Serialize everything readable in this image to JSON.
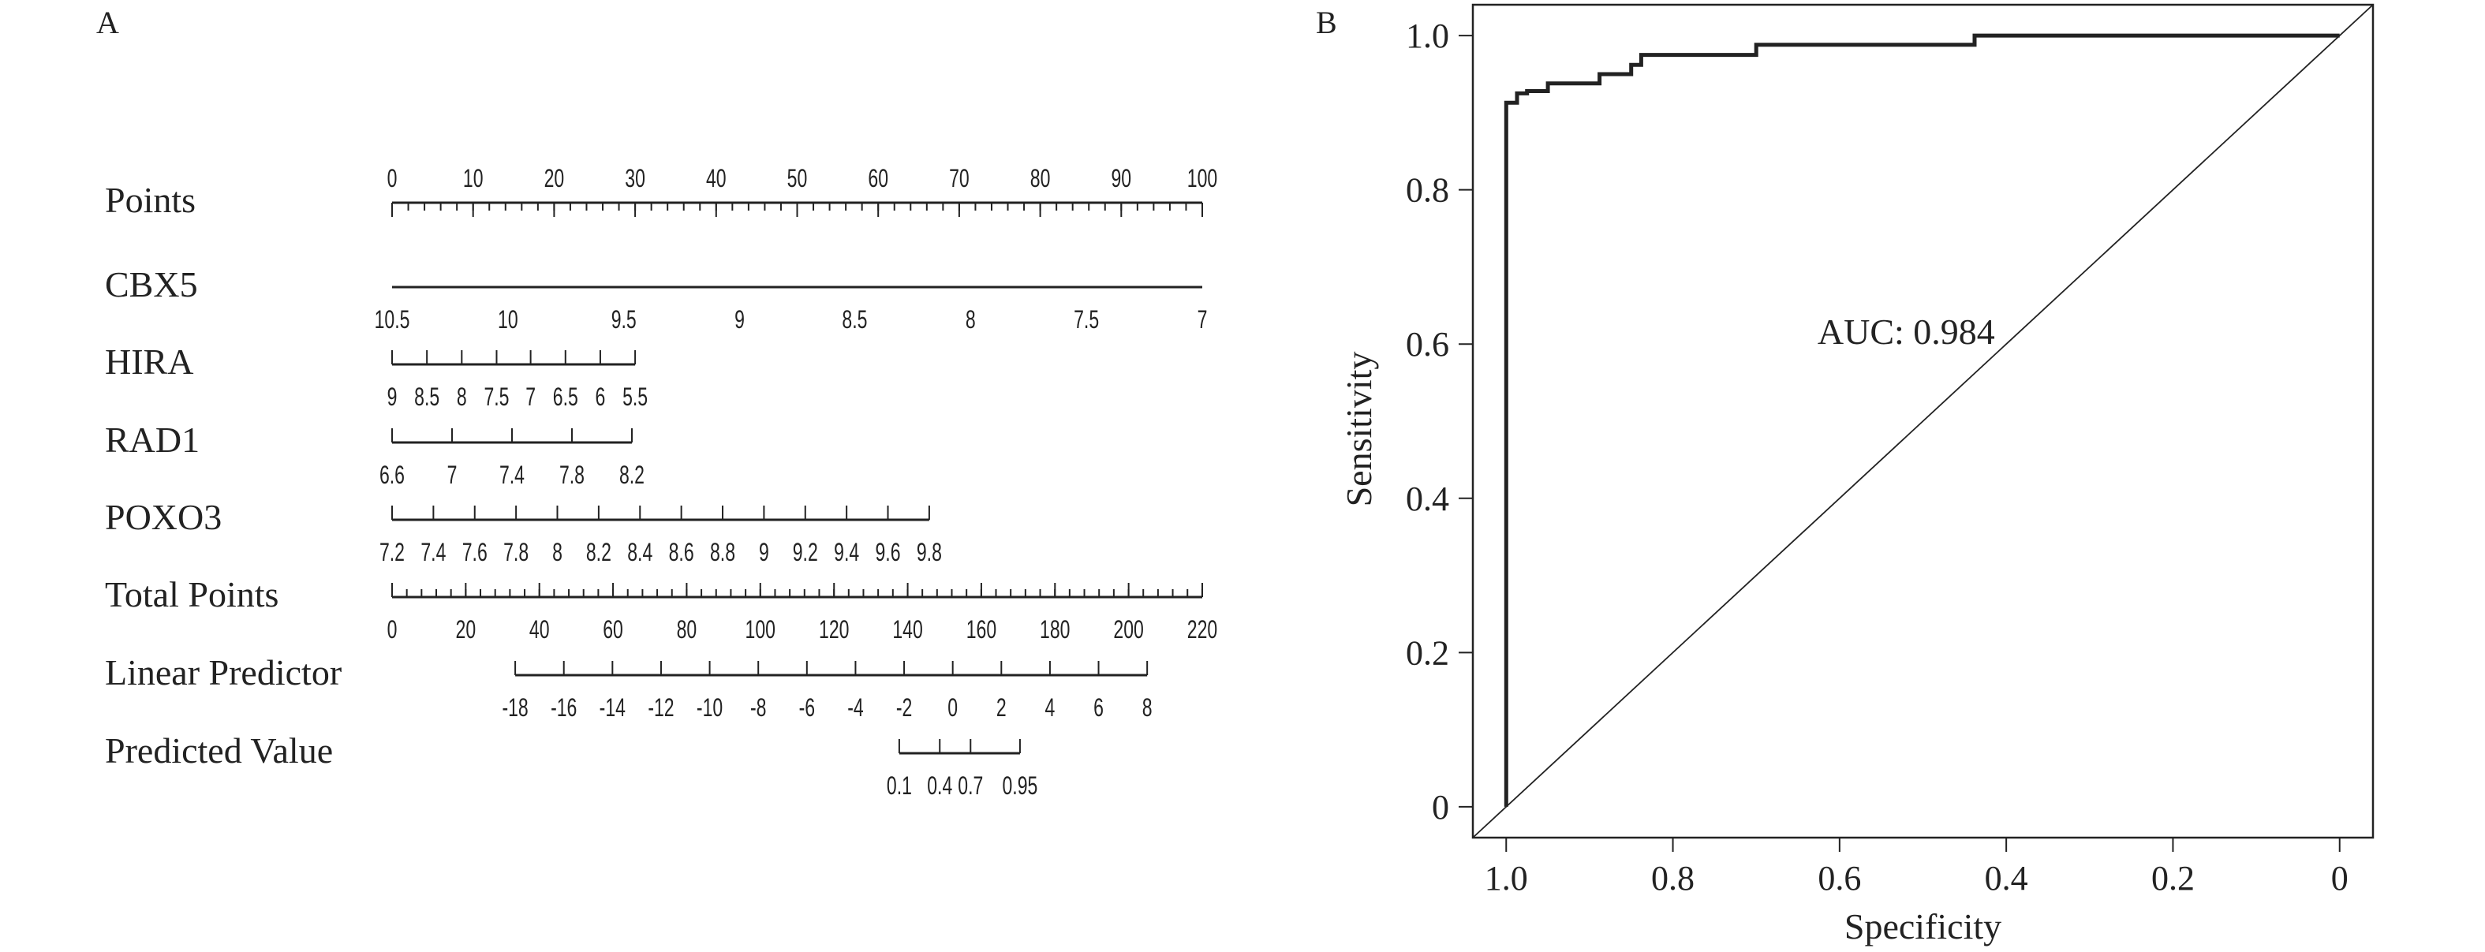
{
  "panels": {
    "a_label": "A",
    "b_label": "B"
  },
  "chart_data": [
    {
      "type": "nomogram",
      "panel": "A",
      "rows": [
        {
          "name": "Points",
          "axis_values": [
            0,
            100
          ],
          "ticks": [
            {
              "pos": 0,
              "label": "0"
            },
            {
              "pos": 10,
              "label": "10"
            },
            {
              "pos": 20,
              "label": "20"
            },
            {
              "pos": 30,
              "label": "30"
            },
            {
              "pos": 40,
              "label": "40"
            },
            {
              "pos": 50,
              "label": "50"
            },
            {
              "pos": 60,
              "label": "60"
            },
            {
              "pos": 70,
              "label": "70"
            },
            {
              "pos": 80,
              "label": "80"
            },
            {
              "pos": 90,
              "label": "90"
            },
            {
              "pos": 100,
              "label": "100"
            }
          ],
          "minor_step": 2,
          "label_position": "above"
        },
        {
          "name": "CBX5",
          "ticks": [
            {
              "pos": 0,
              "label": "10.5"
            },
            {
              "pos": 14.3,
              "label": "10"
            },
            {
              "pos": 28.6,
              "label": "9.5"
            },
            {
              "pos": 42.9,
              "label": "9"
            },
            {
              "pos": 57.1,
              "label": "8.5"
            },
            {
              "pos": 71.4,
              "label": "8"
            },
            {
              "pos": 85.7,
              "label": "7.5"
            },
            {
              "pos": 100,
              "label": "7"
            }
          ],
          "label_position": "below",
          "tick_direction": "none"
        },
        {
          "name": "HIRA",
          "ticks": [
            {
              "pos": 0,
              "label": "9"
            },
            {
              "pos": 4.3,
              "label": "8.5"
            },
            {
              "pos": 8.6,
              "label": "8"
            },
            {
              "pos": 12.9,
              "label": "7.5"
            },
            {
              "pos": 17.1,
              "label": "7"
            },
            {
              "pos": 21.4,
              "label": "6.5"
            },
            {
              "pos": 25.7,
              "label": "6"
            },
            {
              "pos": 30.0,
              "label": "5.5"
            }
          ],
          "label_position": "below"
        },
        {
          "name": "RAD1",
          "ticks": [
            {
              "pos": 0,
              "label": "6.6"
            },
            {
              "pos": 7.4,
              "label": "7"
            },
            {
              "pos": 14.8,
              "label": "7.4"
            },
            {
              "pos": 22.2,
              "label": "7.8"
            },
            {
              "pos": 29.6,
              "label": "8.2"
            }
          ],
          "label_position": "below"
        },
        {
          "name": "POXO3",
          "ticks": [
            {
              "pos": 0,
              "label": "7.2"
            },
            {
              "pos": 5.1,
              "label": "7.4"
            },
            {
              "pos": 10.2,
              "label": "7.6"
            },
            {
              "pos": 15.3,
              "label": "7.8"
            },
            {
              "pos": 20.4,
              "label": "8"
            },
            {
              "pos": 25.5,
              "label": "8.2"
            },
            {
              "pos": 30.6,
              "label": "8.4"
            },
            {
              "pos": 35.7,
              "label": "8.6"
            },
            {
              "pos": 40.8,
              "label": "8.8"
            },
            {
              "pos": 45.9,
              "label": "9"
            },
            {
              "pos": 51.0,
              "label": "9.2"
            },
            {
              "pos": 56.1,
              "label": "9.4"
            },
            {
              "pos": 61.2,
              "label": "9.6"
            },
            {
              "pos": 66.3,
              "label": "9.8"
            }
          ],
          "label_position": "below"
        },
        {
          "name": "Total Points",
          "axis_values": [
            0,
            220
          ],
          "ticks": [
            {
              "pos": 0,
              "label": "0"
            },
            {
              "pos": 9.09,
              "label": "20"
            },
            {
              "pos": 18.18,
              "label": "40"
            },
            {
              "pos": 27.27,
              "label": "60"
            },
            {
              "pos": 36.36,
              "label": "80"
            },
            {
              "pos": 45.45,
              "label": "100"
            },
            {
              "pos": 54.55,
              "label": "120"
            },
            {
              "pos": 63.64,
              "label": "140"
            },
            {
              "pos": 72.73,
              "label": "160"
            },
            {
              "pos": 81.82,
              "label": "180"
            },
            {
              "pos": 90.91,
              "label": "200"
            },
            {
              "pos": 100,
              "label": "220"
            }
          ],
          "minor_step": 1.818,
          "label_position": "below"
        },
        {
          "name": "Linear Predictor",
          "ticks": [
            {
              "pos": 15.2,
              "label": "-18"
            },
            {
              "pos": 21.2,
              "label": "-16"
            },
            {
              "pos": 27.2,
              "label": "-14"
            },
            {
              "pos": 33.2,
              "label": "-12"
            },
            {
              "pos": 39.2,
              "label": "-10"
            },
            {
              "pos": 45.2,
              "label": "-8"
            },
            {
              "pos": 51.2,
              "label": "-6"
            },
            {
              "pos": 57.2,
              "label": "-4"
            },
            {
              "pos": 63.2,
              "label": "-2"
            },
            {
              "pos": 69.2,
              "label": "0"
            },
            {
              "pos": 75.2,
              "label": "2"
            },
            {
              "pos": 81.2,
              "label": "4"
            },
            {
              "pos": 87.2,
              "label": "6"
            },
            {
              "pos": 93.2,
              "label": "8"
            }
          ],
          "label_position": "below"
        },
        {
          "name": "Predicted Value",
          "ticks": [
            {
              "pos": 62.6,
              "label": "0.1"
            },
            {
              "pos": 67.6,
              "label": "0.4"
            },
            {
              "pos": 71.4,
              "label": "0.7"
            },
            {
              "pos": 77.5,
              "label": "0.95"
            }
          ],
          "label_position": "below"
        }
      ]
    },
    {
      "type": "line",
      "panel": "B",
      "xlabel": "Specificity",
      "ylabel": "Sensitivity",
      "xlim": [
        1.04,
        -0.04
      ],
      "ylim": [
        -0.04,
        1.04
      ],
      "x_ticks": [
        {
          "value": 1.0,
          "label": "1.0"
        },
        {
          "value": 0.8,
          "label": "0.8"
        },
        {
          "value": 0.6,
          "label": "0.6"
        },
        {
          "value": 0.4,
          "label": "0.4"
        },
        {
          "value": 0.2,
          "label": "0.2"
        },
        {
          "value": 0.0,
          "label": "0"
        }
      ],
      "y_ticks": [
        {
          "value": 0.0,
          "label": "0"
        },
        {
          "value": 0.2,
          "label": "0.2"
        },
        {
          "value": 0.4,
          "label": "0.4"
        },
        {
          "value": 0.6,
          "label": "0.6"
        },
        {
          "value": 0.8,
          "label": "0.8"
        },
        {
          "value": 1.0,
          "label": "1.0"
        }
      ],
      "annotation": "AUC: 0.984",
      "annotation_at": [
        0.52,
        0.6
      ],
      "diagonal": true,
      "series": [
        {
          "x": [
            1.0,
            1.0,
            0.987,
            0.987,
            0.975,
            0.975,
            0.95,
            0.95,
            0.888,
            0.888,
            0.85,
            0.85,
            0.838,
            0.838,
            0.7,
            0.7,
            0.438,
            0.438,
            0.0
          ],
          "y": [
            0.0,
            0.913,
            0.913,
            0.925,
            0.925,
            0.928,
            0.928,
            0.938,
            0.938,
            0.95,
            0.95,
            0.962,
            0.962,
            0.975,
            0.975,
            0.988,
            0.988,
            1.0,
            1.0
          ]
        }
      ]
    }
  ]
}
